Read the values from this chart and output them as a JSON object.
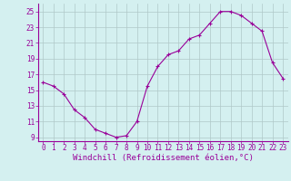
{
  "x": [
    0,
    1,
    2,
    3,
    4,
    5,
    6,
    7,
    8,
    9,
    10,
    11,
    12,
    13,
    14,
    15,
    16,
    17,
    18,
    19,
    20,
    21,
    22,
    23
  ],
  "y": [
    16,
    15.5,
    14.5,
    12.5,
    11.5,
    10,
    9.5,
    9,
    9.2,
    11,
    15.5,
    18,
    19.5,
    20,
    21.5,
    22,
    23.5,
    25,
    25,
    24.5,
    23.5,
    22.5,
    18.5,
    16.5
  ],
  "xlim": [
    -0.5,
    23.5
  ],
  "ylim": [
    8.5,
    26.0
  ],
  "yticks": [
    9,
    11,
    13,
    15,
    17,
    19,
    21,
    23,
    25
  ],
  "xticks": [
    0,
    1,
    2,
    3,
    4,
    5,
    6,
    7,
    8,
    9,
    10,
    11,
    12,
    13,
    14,
    15,
    16,
    17,
    18,
    19,
    20,
    21,
    22,
    23
  ],
  "xlabel": "Windchill (Refroidissement éolien,°C)",
  "line_color": "#990099",
  "marker": "+",
  "bg_color": "#d4f0f0",
  "grid_color": "#b0c8c8",
  "tick_fontsize": 5.5,
  "xlabel_fontsize": 6.5
}
